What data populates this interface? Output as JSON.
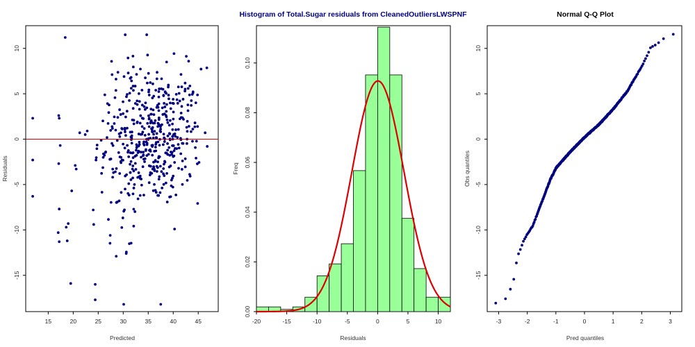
{
  "colors": {
    "points": "#00007F",
    "title_main": "#00007F",
    "title_qq": "#000000",
    "zero_line": "#CC0000",
    "hist_fill": "#99FF99",
    "hist_edge": "#000000",
    "density_curve": "#DD0000",
    "axes": "#000000"
  },
  "chart_data": [
    {
      "type": "scatter",
      "title": "",
      "xlabel": "Predicted",
      "ylabel": "Residuals",
      "xlim": [
        10.5,
        49
      ],
      "ylim": [
        -19,
        12.5
      ],
      "xticks": [
        "15",
        "20",
        "25",
        "30",
        "35",
        "40",
        "45"
      ],
      "yticks": [
        "-15",
        "-10",
        "-5",
        "0",
        "5",
        "10"
      ],
      "reference_line_y": 0,
      "n_points": 520,
      "generator": {
        "seed": 12345,
        "center_x": 35.5,
        "sd_x": 5.2,
        "sd_y": 4.3
      },
      "points_fixed": [
        [
          11.9,
          2.3
        ],
        [
          11.9,
          -2.3
        ],
        [
          11.9,
          -6.3
        ],
        [
          17.1,
          2.6
        ],
        [
          17.2,
          2.3
        ],
        [
          17.4,
          -0.7
        ],
        [
          17.1,
          -2.7
        ],
        [
          17.2,
          -7.7
        ],
        [
          17.0,
          -10.3
        ],
        [
          17.2,
          -11.3
        ],
        [
          18.4,
          11.2
        ],
        [
          19.0,
          -9.3
        ],
        [
          18.6,
          -9.7
        ],
        [
          18.8,
          -11.2
        ],
        [
          19.5,
          -15.9
        ],
        [
          19.7,
          -5.7
        ],
        [
          20.4,
          -2.9
        ],
        [
          20.6,
          -3.3
        ],
        [
          21.3,
          0.7
        ],
        [
          22.4,
          0.5
        ],
        [
          22.8,
          0.9
        ],
        [
          24.4,
          -16.0
        ],
        [
          24.4,
          -17.7
        ],
        [
          24.0,
          -7.8
        ],
        [
          24.1,
          -9.4
        ],
        [
          30.1,
          -18.2
        ],
        [
          30.4,
          11.5
        ],
        [
          34.7,
          11.5
        ],
        [
          37.5,
          -18.2
        ],
        [
          30.6,
          -12.6
        ],
        [
          28.6,
          -12.9
        ],
        [
          27.4,
          -10.6
        ],
        [
          46.8,
          -0.8
        ]
      ]
    },
    {
      "type": "bar",
      "subtype": "histogram",
      "title": "Histogram of Total.Sugar residuals from CleanedOutliersLWSPNF",
      "xlabel": "Residuals",
      "ylabel": "Freq",
      "xlim": [
        -20,
        12
      ],
      "ylim": [
        0,
        0.115
      ],
      "xticks": [
        "-20",
        "-15",
        "-10",
        "-5",
        "0",
        "5",
        "10"
      ],
      "yticks": [
        "0.00",
        "0.02",
        "0.04",
        "0.06",
        "0.08",
        "0.10"
      ],
      "bins": [
        {
          "x0": -20,
          "x1": -18,
          "value": 0.0019
        },
        {
          "x0": -18,
          "x1": -16,
          "value": 0.0019
        },
        {
          "x0": -16,
          "x1": -14,
          "value": 0.0009
        },
        {
          "x0": -14,
          "x1": -12,
          "value": 0.0019
        },
        {
          "x0": -12,
          "x1": -10,
          "value": 0.0058
        },
        {
          "x0": -10,
          "x1": -8,
          "value": 0.0144
        },
        {
          "x0": -8,
          "x1": -6,
          "value": 0.0192
        },
        {
          "x0": -6,
          "x1": -4,
          "value": 0.0273
        },
        {
          "x0": -4,
          "x1": -2,
          "value": 0.0567
        },
        {
          "x0": -2,
          "x1": 0,
          "value": 0.0952
        },
        {
          "x0": 0,
          "x1": 2,
          "value": 0.1144
        },
        {
          "x0": 2,
          "x1": 4,
          "value": 0.0952
        },
        {
          "x0": 4,
          "x1": 6,
          "value": 0.0375
        },
        {
          "x0": 6,
          "x1": 8,
          "value": 0.0173
        },
        {
          "x0": 8,
          "x1": 10,
          "value": 0.0058
        },
        {
          "x0": 10,
          "x1": 12,
          "value": 0.0058
        }
      ],
      "density_curve": {
        "mean": 0.05,
        "sd": 4.3
      }
    },
    {
      "type": "scatter",
      "subtype": "qq",
      "title": "Normal Q-Q Plot",
      "xlabel": "Pred quantiles",
      "ylabel": "Obs quantiles",
      "xlim": [
        -3.4,
        3.4
      ],
      "ylim": [
        -19,
        12.5
      ],
      "xticks": [
        "-3",
        "-2",
        "-1",
        "0",
        "1",
        "2",
        "3"
      ],
      "yticks": [
        "-15",
        "-10",
        "-5",
        "0",
        "5",
        "10"
      ],
      "n_points": 520,
      "anchor_curve": [
        [
          -3.2,
          -18.2
        ],
        [
          -2.75,
          -17.6
        ],
        [
          -2.5,
          -16.0
        ],
        [
          -2.35,
          -13.0
        ],
        [
          -2.1,
          -11.0
        ],
        [
          -1.8,
          -9.5
        ],
        [
          -1.5,
          -7.0
        ],
        [
          -1.2,
          -4.5
        ],
        [
          -1.0,
          -3.2
        ],
        [
          -0.5,
          -1.4
        ],
        [
          0.0,
          0.2
        ],
        [
          0.5,
          1.6
        ],
        [
          1.0,
          3.3
        ],
        [
          1.5,
          5.3
        ],
        [
          2.0,
          8.0
        ],
        [
          2.3,
          10.0
        ],
        [
          2.6,
          10.6
        ],
        [
          2.9,
          11.5
        ],
        [
          3.1,
          11.6
        ]
      ]
    }
  ]
}
